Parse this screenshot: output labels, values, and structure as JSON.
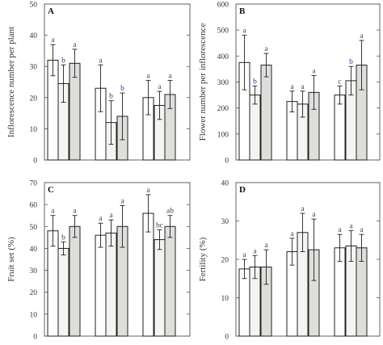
{
  "chart_data": [
    {
      "type": "bar",
      "panel_label": "A",
      "ylabel": "Inflorescence number per plant",
      "ylim": [
        0,
        50
      ],
      "yticks": [
        0,
        10,
        20,
        30,
        40,
        50
      ],
      "groups": [
        {
          "values": [
            32,
            24.5,
            31
          ],
          "errors": [
            5,
            6,
            4.5
          ],
          "letters": [
            "a",
            "b",
            "a"
          ]
        },
        {
          "values": [
            23,
            12,
            14
          ],
          "errors": [
            7.5,
            7,
            7.5
          ],
          "letters": [
            "a",
            "b",
            "b"
          ]
        },
        {
          "values": [
            20,
            17.5,
            21
          ],
          "errors": [
            5.5,
            4.5,
            4.5
          ],
          "letters": [
            "a",
            "a",
            "a"
          ]
        }
      ]
    },
    {
      "type": "bar",
      "panel_label": "B",
      "ylabel": "Flower number per inflorescence",
      "ylim": [
        0,
        600
      ],
      "yticks": [
        0,
        100,
        200,
        300,
        400,
        500,
        600
      ],
      "groups": [
        {
          "values": [
            375,
            250,
            365
          ],
          "errors": [
            105,
            35,
            45
          ],
          "letters": [
            "a",
            "b",
            "a"
          ]
        },
        {
          "values": [
            225,
            215,
            260
          ],
          "errors": [
            40,
            50,
            65
          ],
          "letters": [
            "a",
            "a",
            "a"
          ]
        },
        {
          "values": [
            250,
            305,
            365
          ],
          "errors": [
            35,
            55,
            95
          ],
          "letters": [
            "c",
            "b",
            "a"
          ]
        }
      ]
    },
    {
      "type": "bar",
      "panel_label": "C",
      "ylabel": "Fruit set (%)",
      "ylim": [
        0,
        70
      ],
      "yticks": [
        0,
        10,
        20,
        30,
        40,
        50,
        60,
        70
      ],
      "groups": [
        {
          "values": [
            48,
            40,
            50
          ],
          "errors": [
            7,
            3,
            5
          ],
          "letters": [
            "a",
            "b",
            "a"
          ]
        },
        {
          "values": [
            46,
            47,
            50
          ],
          "errors": [
            5.5,
            6,
            9.5
          ],
          "letters": [
            "a",
            "a",
            "a"
          ]
        },
        {
          "values": [
            56,
            44,
            50
          ],
          "errors": [
            8.5,
            4.5,
            5
          ],
          "letters": [
            "a",
            "bc",
            "ab"
          ]
        }
      ]
    },
    {
      "type": "bar",
      "panel_label": "D",
      "ylabel": "Fertility (%)",
      "ylim": [
        0,
        40
      ],
      "yticks": [
        0,
        10,
        20,
        30,
        40
      ],
      "groups": [
        {
          "values": [
            17.5,
            18,
            18
          ],
          "errors": [
            2.5,
            3,
            4.5
          ],
          "letters": [
            "a",
            "a",
            "a"
          ]
        },
        {
          "values": [
            22,
            27,
            22.5
          ],
          "errors": [
            3.5,
            5,
            8
          ],
          "letters": [
            "a",
            "a",
            "a"
          ]
        },
        {
          "values": [
            23,
            23.5,
            23
          ],
          "errors": [
            3.5,
            4,
            3.5
          ],
          "letters": [
            "a",
            "a",
            "a"
          ]
        }
      ]
    }
  ],
  "colors": {
    "fills": [
      "#ffffff",
      "#f4f4f2",
      "#dcdfdb"
    ],
    "letter_default": "#444444",
    "letter_highlight": "#1f3a86"
  }
}
